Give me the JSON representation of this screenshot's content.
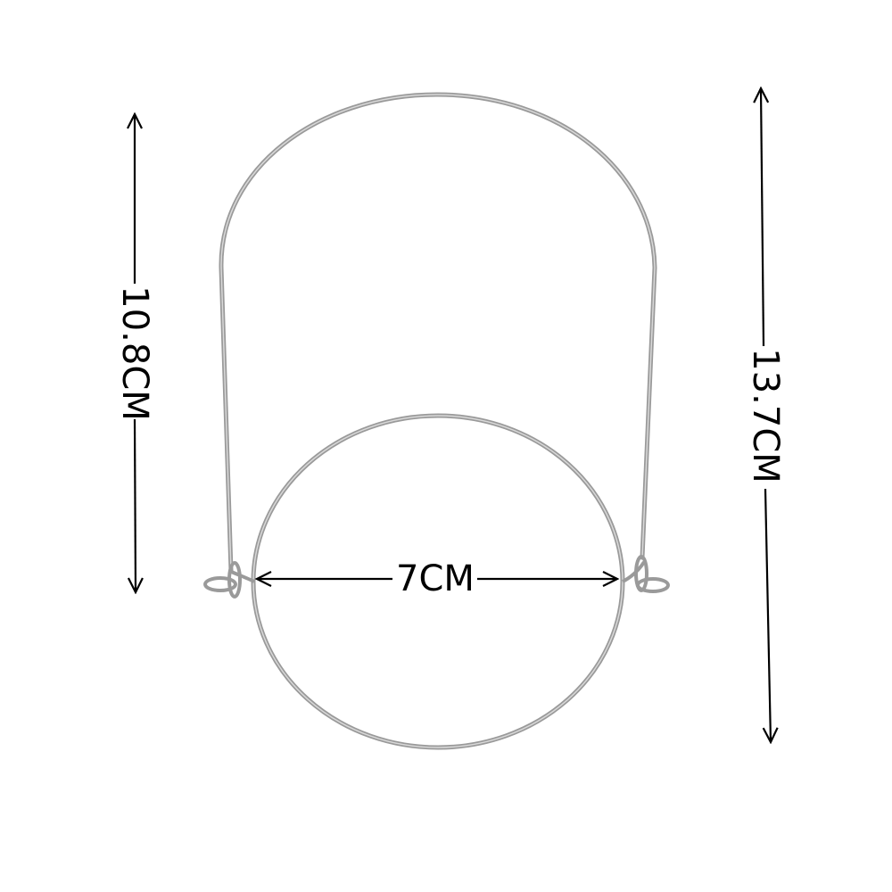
{
  "diagram": {
    "dimensions": {
      "handle_height": "10.8CM",
      "total_height": "13.7CM",
      "ring_diameter": "7CM"
    },
    "colors": {
      "wire": "#9a9a9a",
      "wire_highlight": "#d8d8d8",
      "dimension_line": "#000000",
      "background": "#ffffff"
    }
  }
}
